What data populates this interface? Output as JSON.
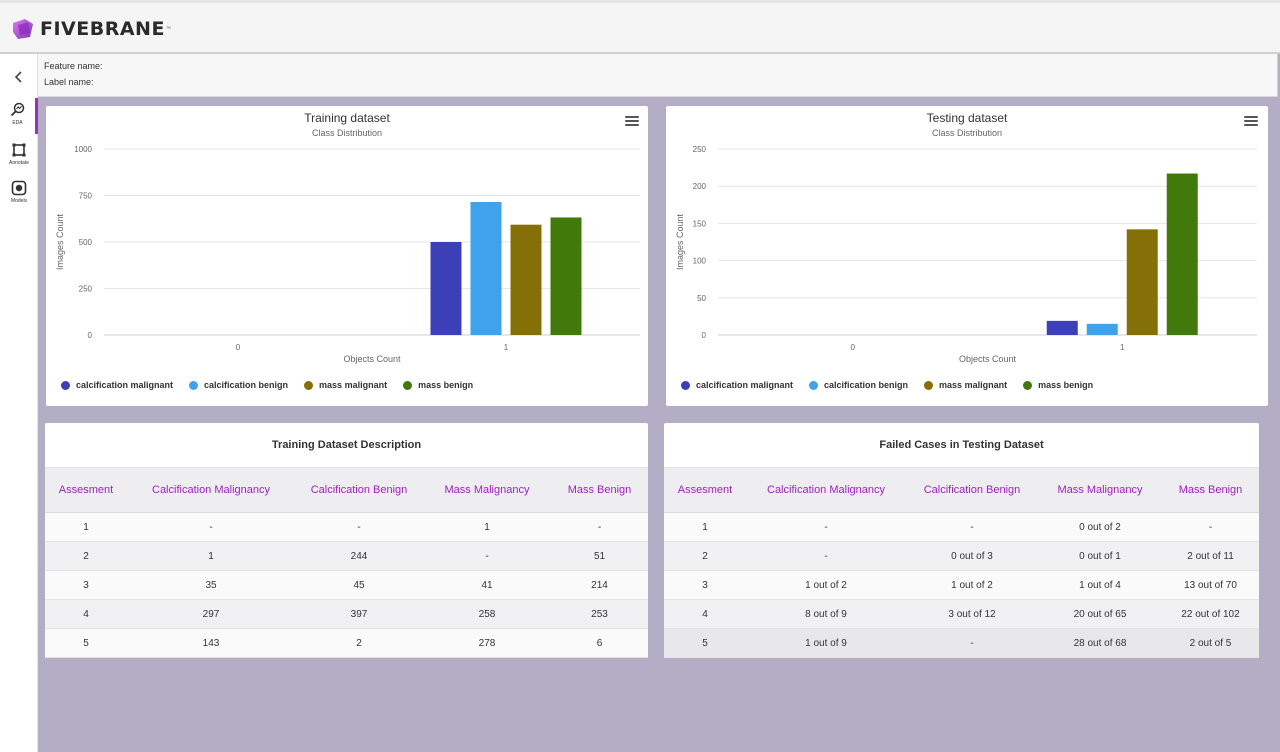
{
  "app": {
    "name": "FIVEBRANE",
    "tm": "™"
  },
  "nav": [
    {
      "label": "EDA",
      "icon": "chart-search-icon"
    },
    {
      "label": "Annotate",
      "icon": "crop-square-icon"
    },
    {
      "label": "Models",
      "icon": "model-icon"
    }
  ],
  "info": {
    "feature": "Feature name:",
    "label": "Label name:"
  },
  "legend": [
    {
      "name": "calcification malignant",
      "color": "#3b40b8"
    },
    {
      "name": "calcification benign",
      "color": "#3ea3ec"
    },
    {
      "name": "mass malignant",
      "color": "#857008"
    },
    {
      "name": "mass benign",
      "color": "#417a0b"
    }
  ],
  "chart_data": [
    {
      "type": "bar",
      "title": "Training dataset",
      "subtitle": "Class Distribution",
      "xlabel": "Objects Count",
      "ylabel": "Images Count",
      "categories": [
        "0",
        "1"
      ],
      "yticks": [
        "0",
        "250",
        "500",
        "750",
        "1000"
      ],
      "ylim": [
        0,
        1000
      ],
      "series": [
        {
          "name": "calcification malignant",
          "values": [
            0,
            500
          ]
        },
        {
          "name": "calcification benign",
          "values": [
            0,
            715
          ]
        },
        {
          "name": "mass malignant",
          "values": [
            0,
            593
          ]
        },
        {
          "name": "mass benign",
          "values": [
            0,
            632
          ]
        }
      ],
      "legend": "bottom-left",
      "grid": true
    },
    {
      "type": "bar",
      "title": "Testing dataset",
      "subtitle": "Class Distribution",
      "xlabel": "Objects Count",
      "ylabel": "Images Count",
      "categories": [
        "0",
        "1"
      ],
      "yticks": [
        "0",
        "50",
        "100",
        "150",
        "200",
        "250"
      ],
      "ylim": [
        0,
        250
      ],
      "series": [
        {
          "name": "calcification malignant",
          "values": [
            0,
            19
          ]
        },
        {
          "name": "calcification benign",
          "values": [
            0,
            15
          ]
        },
        {
          "name": "mass malignant",
          "values": [
            0,
            142
          ]
        },
        {
          "name": "mass benign",
          "values": [
            0,
            217
          ]
        }
      ],
      "legend": "bottom-left",
      "grid": true
    }
  ],
  "train_table": {
    "title": "Training Dataset Description",
    "headers": [
      "Assesment",
      "Calcification Malignancy",
      "Calcification Benign",
      "Mass Malignancy",
      "Mass Benign"
    ],
    "rows": [
      [
        "1",
        "-",
        "-",
        "1",
        "-"
      ],
      [
        "2",
        "1",
        "244",
        "-",
        "51"
      ],
      [
        "3",
        "35",
        "45",
        "41",
        "214"
      ],
      [
        "4",
        "297",
        "397",
        "258",
        "253"
      ],
      [
        "5",
        "143",
        "2",
        "278",
        "6"
      ]
    ]
  },
  "test_table": {
    "title": "Failed Cases in Testing Dataset",
    "headers": [
      "Assesment",
      "Calcification Malignancy",
      "Calcification Benign",
      "Mass Malignancy",
      "Mass Benign"
    ],
    "rows": [
      [
        "1",
        "-",
        "-",
        "0 out of 2",
        "-"
      ],
      [
        "2",
        "-",
        "0 out of 3",
        "0 out of 1",
        "2 out of 11"
      ],
      [
        "3",
        "1 out of 2",
        "1 out of 2",
        "1 out of 4",
        "13 out of 70"
      ],
      [
        "4",
        "8 out of 9",
        "3 out of 12",
        "20 out of 65",
        "22 out of 102"
      ],
      [
        "5",
        "1 out of 9",
        "-",
        "28 out of 68",
        "2 out of 5"
      ]
    ]
  }
}
